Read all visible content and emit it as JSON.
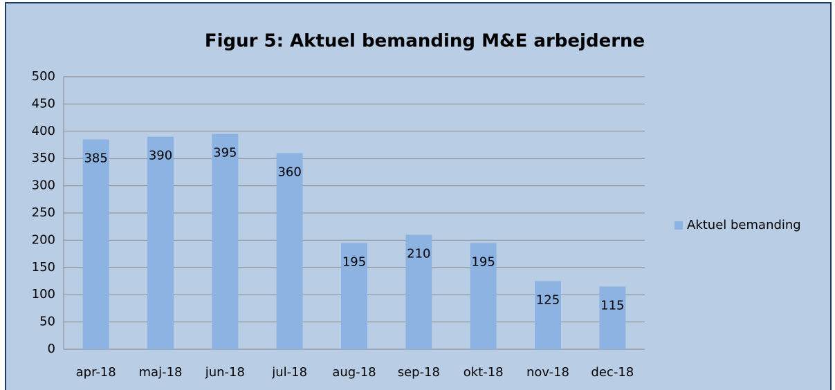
{
  "chart_data": {
    "type": "bar",
    "title": "Figur 5: Aktuel bemanding M&E arbejderne",
    "categories": [
      "apr-18",
      "maj-18",
      "jun-18",
      "jul-18",
      "aug-18",
      "sep-18",
      "okt-18",
      "nov-18",
      "dec-18"
    ],
    "series": [
      {
        "name": "Aktuel bemanding",
        "color": "#8db3e2",
        "values": [
          385,
          390,
          395,
          360,
          195,
          210,
          195,
          125,
          115
        ]
      }
    ],
    "ylim": [
      0,
      500
    ],
    "yticks": [
      0,
      50,
      100,
      150,
      200,
      250,
      300,
      350,
      400,
      450,
      500
    ],
    "grid": true,
    "legend": "right"
  }
}
